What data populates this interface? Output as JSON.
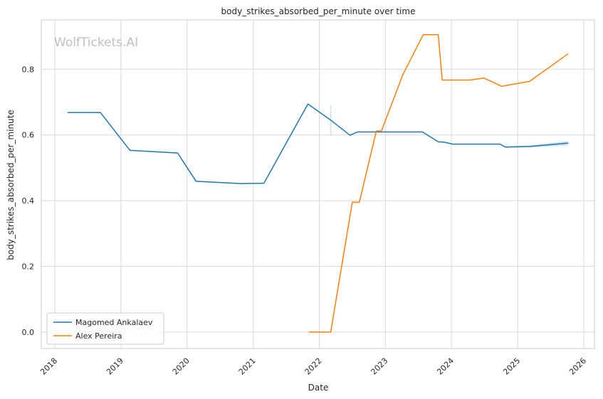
{
  "chart_data": {
    "type": "line",
    "title": "body_strikes_absorbed_per_minute over time",
    "xlabel": "Date",
    "ylabel": "body_strikes_absorbed_per_minute",
    "watermark": "WolfTickets.AI",
    "x_ticks": [
      "2018",
      "2019",
      "2020",
      "2021",
      "2022",
      "2023",
      "2024",
      "2025",
      "2026"
    ],
    "y_ticks": [
      "0.0",
      "0.2",
      "0.4",
      "0.6",
      "0.8"
    ],
    "xlim": [
      "2017-10-18",
      "2026-03-01"
    ],
    "ylim": [
      -0.05,
      0.95
    ],
    "grid": true,
    "legend_position": "lower-left",
    "series": [
      {
        "name": "Magomed Ankalaev",
        "color": "#1f77b4",
        "points": [
          [
            "2018-03-15",
            0.668
          ],
          [
            "2018-09-10",
            0.668
          ],
          [
            "2019-02-20",
            0.553
          ],
          [
            "2019-11-10",
            0.545
          ],
          [
            "2020-02-20",
            0.459
          ],
          [
            "2020-10-25",
            0.452
          ],
          [
            "2021-03-01",
            0.453
          ],
          [
            "2021-10-30",
            0.694
          ],
          [
            "2022-03-05",
            0.645
          ],
          [
            "2022-06-20",
            0.599
          ],
          [
            "2022-07-30",
            0.609
          ],
          [
            "2023-07-25",
            0.609
          ],
          [
            "2023-10-20",
            0.579
          ],
          [
            "2023-11-20",
            0.578
          ],
          [
            "2024-01-10",
            0.572
          ],
          [
            "2024-09-25",
            0.572
          ],
          [
            "2024-10-25",
            0.563
          ],
          [
            "2025-03-10",
            0.565
          ],
          [
            "2025-10-05",
            0.575
          ]
        ]
      },
      {
        "name": "Alex Pereira",
        "color": "#ff7f0e",
        "points": [
          [
            "2021-11-06",
            0.0
          ],
          [
            "2022-03-05",
            0.0
          ],
          [
            "2022-07-02",
            0.395
          ],
          [
            "2022-08-10",
            0.395
          ],
          [
            "2022-11-12",
            0.612
          ],
          [
            "2022-12-10",
            0.612
          ],
          [
            "2023-04-08",
            0.784
          ],
          [
            "2023-07-29",
            0.905
          ],
          [
            "2023-10-20",
            0.905
          ],
          [
            "2023-11-11",
            0.767
          ],
          [
            "2024-04-13",
            0.767
          ],
          [
            "2024-06-29",
            0.773
          ],
          [
            "2024-10-05",
            0.748
          ],
          [
            "2024-10-25",
            0.75
          ],
          [
            "2025-03-08",
            0.763
          ],
          [
            "2025-10-04",
            0.846
          ]
        ]
      }
    ]
  }
}
